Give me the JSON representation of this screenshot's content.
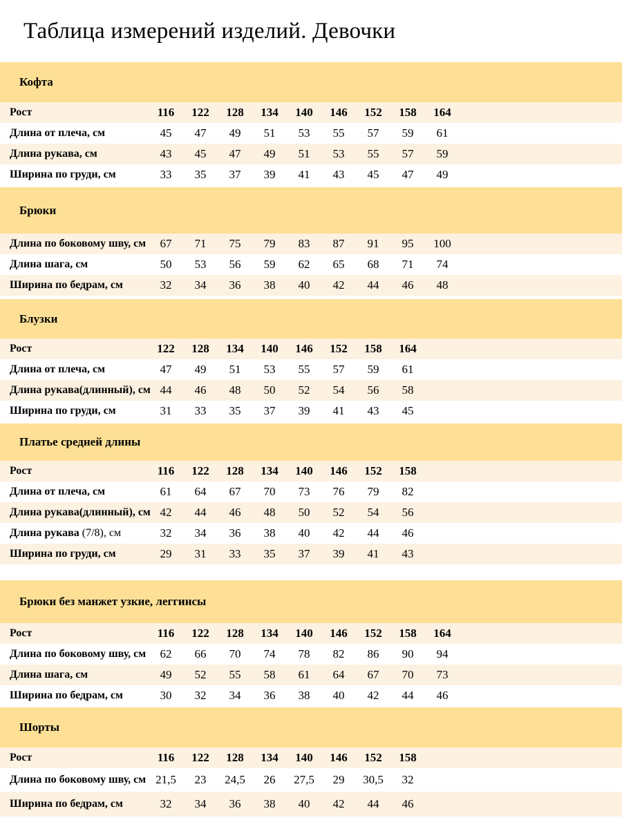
{
  "page_title": "Таблица измерений изделий. Девочки",
  "colors": {
    "section_band": "#fde096",
    "row_stripe": "#fdf1e1",
    "row_plain": "#ffffff",
    "page_background": "#ffffff",
    "text": "#000000"
  },
  "sections": [
    {
      "title": "Кофта",
      "rows": [
        {
          "label": "Рост",
          "bold_values": true,
          "values": [
            "116",
            "122",
            "128",
            "134",
            "140",
            "146",
            "152",
            "158",
            "164"
          ]
        },
        {
          "label": "Длина от плеча, см",
          "values": [
            "45",
            "47",
            "49",
            "51",
            "53",
            "55",
            "57",
            "59",
            "61"
          ]
        },
        {
          "label": "Длина рукава, см",
          "values": [
            "43",
            "45",
            "47",
            "49",
            "51",
            "53",
            "55",
            "57",
            "59"
          ]
        },
        {
          "label": "Ширина по груди, см",
          "values": [
            "33",
            "35",
            "37",
            "39",
            "41",
            "43",
            "45",
            "47",
            "49"
          ]
        }
      ]
    },
    {
      "title": "Брюки",
      "rows": [
        {
          "label": "Длина по боковому шву, см",
          "values": [
            "67",
            "71",
            "75",
            "79",
            "83",
            "87",
            "91",
            "95",
            "100"
          ]
        },
        {
          "label": "Длина шага, см",
          "values": [
            "50",
            "53",
            "56",
            "59",
            "62",
            "65",
            "68",
            "71",
            "74"
          ]
        },
        {
          "label": "Ширина по бедрам, см",
          "values": [
            "32",
            "34",
            "36",
            "38",
            "40",
            "42",
            "44",
            "46",
            "48"
          ]
        }
      ]
    },
    {
      "title": "Блузки",
      "rows": [
        {
          "label": "Рост",
          "bold_values": true,
          "values": [
            "122",
            "128",
            "134",
            "140",
            "146",
            "152",
            "158",
            "164"
          ]
        },
        {
          "label": "Длина от плеча, см",
          "values": [
            "47",
            "49",
            "51",
            "53",
            "55",
            "57",
            "59",
            "61"
          ]
        },
        {
          "label": "Длина рукава(длинный), см",
          "values": [
            "44",
            "46",
            "48",
            "50",
            "52",
            "54",
            "56",
            "58"
          ]
        },
        {
          "label": "Ширина по груди, см",
          "values": [
            "31",
            "33",
            "35",
            "37",
            "39",
            "41",
            "43",
            "45"
          ]
        }
      ]
    },
    {
      "title": "Платье средней длины",
      "rows": [
        {
          "label": "Рост",
          "bold_values": true,
          "values": [
            "116",
            "122",
            "128",
            "134",
            "140",
            "146",
            "152",
            "158"
          ]
        },
        {
          "label": "Длина от плеча, см",
          "values": [
            "61",
            "64",
            "67",
            "70",
            "73",
            "76",
            "79",
            "82"
          ]
        },
        {
          "label": "Длина рукава(длинный), см",
          "values": [
            "42",
            "44",
            "46",
            "48",
            "50",
            "52",
            "54",
            "56"
          ]
        },
        {
          "label": "Длина рукава",
          "label_suffix": " (7/8), см",
          "values": [
            "32",
            "34",
            "36",
            "38",
            "40",
            "42",
            "44",
            "46"
          ]
        },
        {
          "label": "Ширина по груди, см",
          "values": [
            "29",
            "31",
            "33",
            "35",
            "37",
            "39",
            "41",
            "43"
          ]
        }
      ]
    },
    {
      "title": "Брюки без манжет узкие, леггинсы",
      "rows": [
        {
          "label": "Рост",
          "bold_values": true,
          "values": [
            "116",
            "122",
            "128",
            "134",
            "140",
            "146",
            "152",
            "158",
            "164"
          ]
        },
        {
          "label": "Длина по боковому шву, см",
          "values": [
            "62",
            "66",
            "70",
            "74",
            "78",
            "82",
            "86",
            "90",
            "94"
          ]
        },
        {
          "label": "Длина шага, см",
          "values": [
            "49",
            "52",
            "55",
            "58",
            "61",
            "64",
            "67",
            "70",
            "73"
          ]
        },
        {
          "label": "Ширина по бедрам, см",
          "values": [
            "30",
            "32",
            "34",
            "36",
            "38",
            "40",
            "42",
            "44",
            "46"
          ]
        }
      ]
    },
    {
      "title": "Шорты",
      "rows": [
        {
          "label": "Рост",
          "bold_values": true,
          "values": [
            "116",
            "122",
            "128",
            "134",
            "140",
            "146",
            "152",
            "158"
          ]
        },
        {
          "label": "Длина по боковому шву, см",
          "values": [
            "21,5",
            "23",
            "24,5",
            "26",
            "27,5",
            "29",
            "30,5",
            "32"
          ]
        },
        {
          "label": "Ширина по бедрам, см",
          "values": [
            "32",
            "34",
            "36",
            "38",
            "40",
            "42",
            "44",
            "46"
          ]
        }
      ]
    }
  ]
}
